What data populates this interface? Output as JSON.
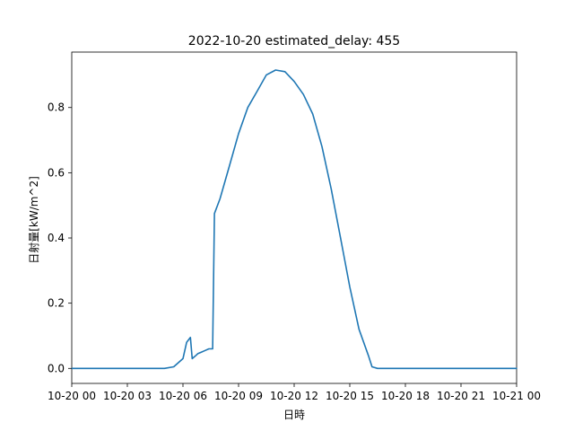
{
  "chart_data": {
    "type": "line",
    "title": "2022-10-20 estimated_delay: 455",
    "xlabel": "日時",
    "ylabel": "日射量[kW/m^2]",
    "xlim": [
      0,
      24
    ],
    "ylim": [
      -0.046,
      0.97
    ],
    "x_ticks": [
      0,
      3,
      6,
      9,
      12,
      15,
      18,
      21,
      24
    ],
    "x_tick_labels": [
      "10-20 00",
      "10-20 03",
      "10-20 06",
      "10-20 09",
      "10-20 12",
      "10-20 15",
      "10-20 18",
      "10-20 21",
      "10-21 00"
    ],
    "y_ticks": [
      0.0,
      0.2,
      0.4,
      0.6,
      0.8
    ],
    "y_tick_labels": [
      "0.0",
      "0.2",
      "0.4",
      "0.6",
      "0.8"
    ],
    "grid": false,
    "color": "#1f77b4",
    "series": [
      {
        "x": [
          0,
          1,
          2,
          3,
          4,
          5,
          5.5,
          6,
          6.2,
          6.4,
          6.5,
          6.6,
          6.7,
          6.8,
          7.0,
          7.2,
          7.4,
          7.6,
          7.7,
          8.0,
          8.5,
          9.0,
          9.5,
          10.0,
          10.5,
          11.0,
          11.5,
          12.0,
          12.5,
          13.0,
          13.5,
          14.0,
          14.5,
          15.0,
          15.5,
          16.0,
          16.2,
          16.5,
          17,
          18,
          19,
          20,
          21,
          22,
          23,
          24
        ],
        "y": [
          0.0,
          0.0,
          0.0,
          0.0,
          0.0,
          0.0,
          0.005,
          0.03,
          0.08,
          0.095,
          0.03,
          0.035,
          0.04,
          0.045,
          0.05,
          0.055,
          0.06,
          0.06,
          0.475,
          0.52,
          0.62,
          0.72,
          0.8,
          0.85,
          0.9,
          0.915,
          0.91,
          0.88,
          0.84,
          0.78,
          0.68,
          0.55,
          0.4,
          0.25,
          0.12,
          0.04,
          0.005,
          0.0,
          0.0,
          0.0,
          0.0,
          0.0,
          0.0,
          0.0,
          0.0,
          0.0
        ]
      }
    ]
  }
}
